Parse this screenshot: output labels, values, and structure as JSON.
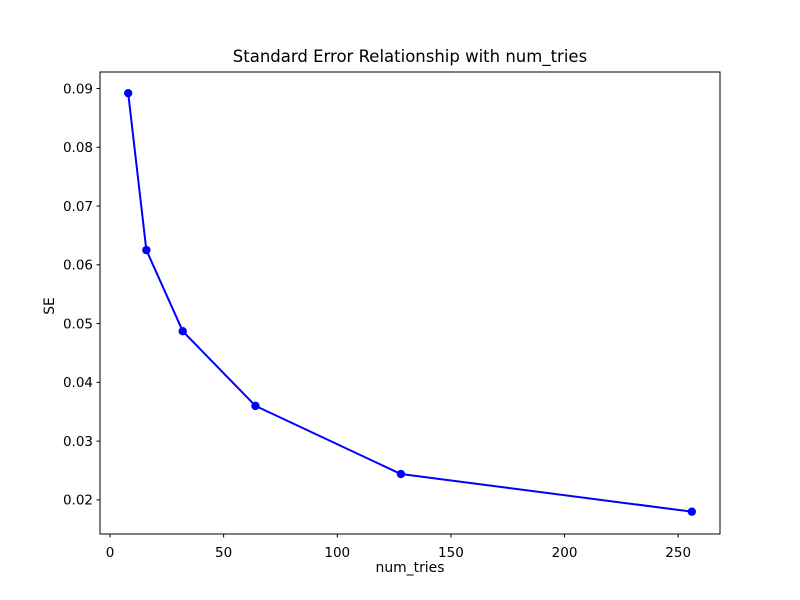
{
  "figure": {
    "background": "#ffffff",
    "text_color": "#000000",
    "spine_color": "#000000"
  },
  "chart_data": {
    "type": "line",
    "title": "Standard Error Relationship with num_tries",
    "xlabel": "num_tries",
    "ylabel": "SE",
    "grid": false,
    "legend": "none",
    "xlim": [
      -4.4,
      268.4
    ],
    "ylim": [
      0.0142,
      0.0928
    ],
    "xticks": [
      0,
      50,
      100,
      150,
      200,
      250
    ],
    "xtick_labels": [
      "0",
      "50",
      "100",
      "150",
      "200",
      "250"
    ],
    "yticks": [
      0.02,
      0.03,
      0.04,
      0.05,
      0.06,
      0.07,
      0.08,
      0.09
    ],
    "ytick_labels": [
      "0.02",
      "0.03",
      "0.04",
      "0.05",
      "0.06",
      "0.07",
      "0.08",
      "0.09"
    ],
    "series": [
      {
        "name": "SE",
        "color": "#0000ff",
        "marker": "circle",
        "line_style": "solid",
        "x": [
          8,
          16,
          32,
          64,
          128,
          256
        ],
        "y": [
          0.0892,
          0.0625,
          0.0487,
          0.036,
          0.0244,
          0.018
        ]
      }
    ]
  }
}
